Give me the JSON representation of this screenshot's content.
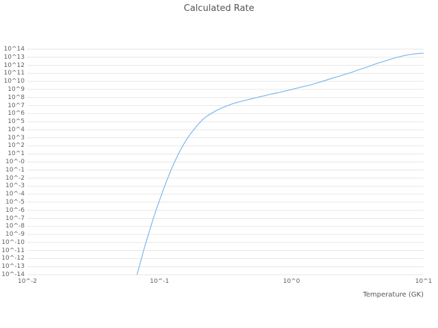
{
  "page": {
    "background": "#ffffff",
    "text_color": "#5f5f5f"
  },
  "chart_data": {
    "type": "line",
    "title": "Calculated Rate",
    "xlabel": "Temperature (GK)",
    "ylabel": "",
    "x_scale": "log10",
    "y_scale": "log10",
    "x_range_log10": [
      -2,
      1
    ],
    "y_range_log10": [
      -14,
      14
    ],
    "grid": "horizontal",
    "grid_color": "#e6e6e6",
    "line_color": "#7cb5ec",
    "x_tick_log10": [
      -2,
      -1,
      0,
      1
    ],
    "x_tick_labels": [
      "10^-2",
      "10^-1",
      "10^0",
      "10^1"
    ],
    "y_tick_log10": [
      14,
      13,
      12,
      11,
      10,
      9,
      8,
      7,
      6,
      5,
      4,
      3,
      2,
      1,
      0,
      -1,
      -2,
      -3,
      -4,
      -5,
      -6,
      -7,
      -8,
      -9,
      -10,
      -11,
      -12,
      -13,
      -14
    ],
    "y_tick_labels": [
      "10^14",
      "10^13",
      "10^12",
      "10^11",
      "10^10",
      "10^9",
      "10^8",
      "10^7",
      "10^6",
      "10^5",
      "10^4",
      "10^3",
      "10^2",
      "10^1",
      "10^-0",
      "10^-1",
      "10^-2",
      "10^-3",
      "10^-4",
      "10^-5",
      "10^-6",
      "10^-7",
      "10^-8",
      "10^-9",
      "10^-10",
      "10^-11",
      "10^-12",
      "10^-13",
      "10^-14"
    ],
    "series": [
      {
        "name": "Calculated Rate",
        "color": "#7cb5ec",
        "points_log10": [
          [
            -1.17,
            -14.0
          ],
          [
            -1.14,
            -12.2
          ],
          [
            -1.11,
            -10.4
          ],
          [
            -1.08,
            -8.8
          ],
          [
            -1.05,
            -7.2
          ],
          [
            -1.02,
            -5.7
          ],
          [
            -1.0,
            -4.8
          ],
          [
            -0.97,
            -3.4
          ],
          [
            -0.94,
            -2.1
          ],
          [
            -0.91,
            -0.9
          ],
          [
            -0.88,
            0.2
          ],
          [
            -0.85,
            1.2
          ],
          [
            -0.82,
            2.1
          ],
          [
            -0.79,
            2.9
          ],
          [
            -0.76,
            3.6
          ],
          [
            -0.73,
            4.2
          ],
          [
            -0.7,
            4.8
          ],
          [
            -0.67,
            5.3
          ],
          [
            -0.64,
            5.7
          ],
          [
            -0.61,
            6.0
          ],
          [
            -0.58,
            6.3
          ],
          [
            -0.55,
            6.55
          ],
          [
            -0.5,
            6.9
          ],
          [
            -0.45,
            7.2
          ],
          [
            -0.4,
            7.45
          ],
          [
            -0.35,
            7.65
          ],
          [
            -0.3,
            7.85
          ],
          [
            -0.25,
            8.05
          ],
          [
            -0.2,
            8.25
          ],
          [
            -0.15,
            8.45
          ],
          [
            -0.1,
            8.6
          ],
          [
            -0.05,
            8.8
          ],
          [
            0.0,
            9.0
          ],
          [
            0.05,
            9.2
          ],
          [
            0.1,
            9.4
          ],
          [
            0.15,
            9.6
          ],
          [
            0.2,
            9.85
          ],
          [
            0.25,
            10.1
          ],
          [
            0.3,
            10.35
          ],
          [
            0.35,
            10.6
          ],
          [
            0.4,
            10.85
          ],
          [
            0.45,
            11.1
          ],
          [
            0.5,
            11.4
          ],
          [
            0.55,
            11.65
          ],
          [
            0.6,
            11.95
          ],
          [
            0.65,
            12.25
          ],
          [
            0.7,
            12.5
          ],
          [
            0.75,
            12.75
          ],
          [
            0.8,
            13.0
          ],
          [
            0.85,
            13.2
          ],
          [
            0.9,
            13.35
          ],
          [
            0.95,
            13.45
          ],
          [
            1.0,
            13.5
          ]
        ]
      }
    ]
  }
}
